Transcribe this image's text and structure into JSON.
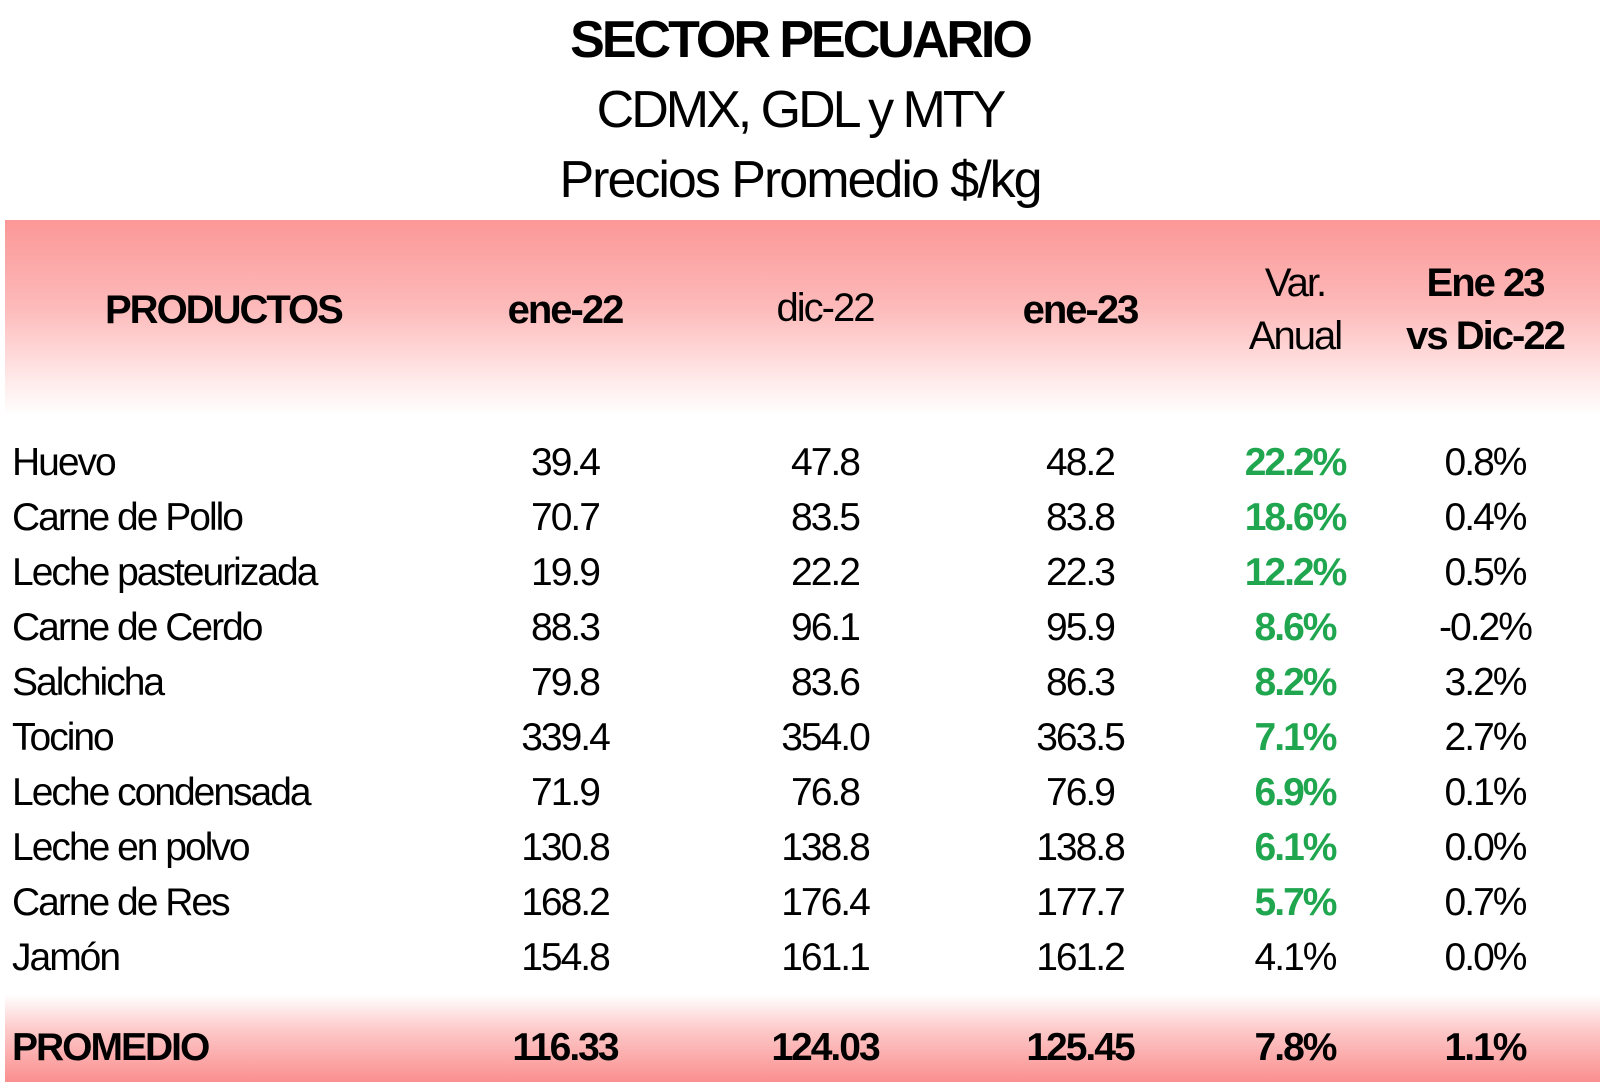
{
  "titles": {
    "main": "SECTOR PECUARIO",
    "sub1": "CDMX, GDL y MTY",
    "sub2": "Precios Promedio $/kg"
  },
  "headers": {
    "productos": "PRODUCTOS",
    "ene22": "ene-22",
    "dic22": "dic-22",
    "ene23": "ene-23",
    "var_line1": "Var.",
    "var_line2": "Anual",
    "cmp_line1": "Ene 23",
    "cmp_line2": "vs Dic-22"
  },
  "colors": {
    "highlight_green": "#1fa64f",
    "band_red": "#fc9797"
  },
  "rows": [
    {
      "producto": "Huevo",
      "ene22": "39.4",
      "dic22": "47.8",
      "ene23": "48.2",
      "var_anual": "22.2%",
      "var_mensual": "0.8%",
      "highlight": true
    },
    {
      "producto": "Carne de Pollo",
      "ene22": "70.7",
      "dic22": "83.5",
      "ene23": "83.8",
      "var_anual": "18.6%",
      "var_mensual": "0.4%",
      "highlight": true
    },
    {
      "producto": "Leche pasteurizada",
      "ene22": "19.9",
      "dic22": "22.2",
      "ene23": "22.3",
      "var_anual": "12.2%",
      "var_mensual": "0.5%",
      "highlight": true
    },
    {
      "producto": "Carne de Cerdo",
      "ene22": "88.3",
      "dic22": "96.1",
      "ene23": "95.9",
      "var_anual": "8.6%",
      "var_mensual": "-0.2%",
      "highlight": true
    },
    {
      "producto": "Salchicha",
      "ene22": "79.8",
      "dic22": "83.6",
      "ene23": "86.3",
      "var_anual": "8.2%",
      "var_mensual": "3.2%",
      "highlight": true
    },
    {
      "producto": "Tocino",
      "ene22": "339.4",
      "dic22": "354.0",
      "ene23": "363.5",
      "var_anual": "7.1%",
      "var_mensual": "2.7%",
      "highlight": true
    },
    {
      "producto": "Leche condensada",
      "ene22": "71.9",
      "dic22": "76.8",
      "ene23": "76.9",
      "var_anual": "6.9%",
      "var_mensual": "0.1%",
      "highlight": true
    },
    {
      "producto": "Leche en polvo",
      "ene22": "130.8",
      "dic22": "138.8",
      "ene23": "138.8",
      "var_anual": "6.1%",
      "var_mensual": "0.0%",
      "highlight": true
    },
    {
      "producto": "Carne de Res",
      "ene22": "168.2",
      "dic22": "176.4",
      "ene23": "177.7",
      "var_anual": "5.7%",
      "var_mensual": "0.7%",
      "highlight": true
    },
    {
      "producto": "Jamón",
      "ene22": "154.8",
      "dic22": "161.1",
      "ene23": "161.2",
      "var_anual": "4.1%",
      "var_mensual": "0.0%",
      "highlight": false
    }
  ],
  "total": {
    "producto": "PROMEDIO",
    "ene22": "116.33",
    "dic22": "124.03",
    "ene23": "125.45",
    "var_anual": "7.8%",
    "var_mensual": "1.1%"
  }
}
